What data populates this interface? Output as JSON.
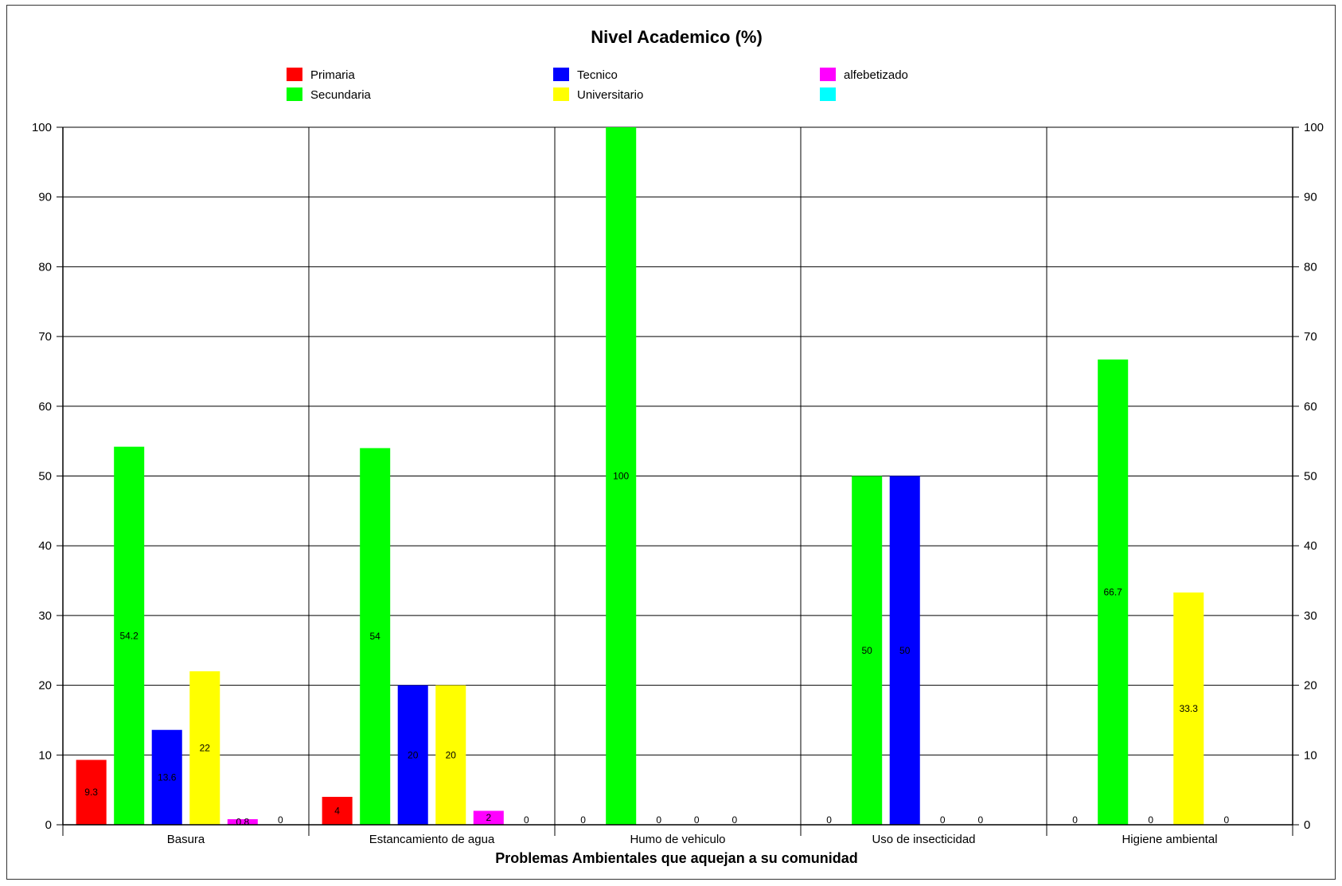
{
  "chart_data": {
    "type": "bar",
    "title": "Nivel Academico (%)",
    "xlabel": "Problemas Ambientales que aquejan a su comunidad",
    "ylabel": "",
    "ylim": [
      0,
      100
    ],
    "yticks": [
      0,
      10,
      20,
      30,
      40,
      50,
      60,
      70,
      80,
      90,
      100
    ],
    "grid": true,
    "legend_position": "top",
    "categories": [
      "Basura",
      "Estancamiento de agua",
      "Humo de vehiculo",
      "Uso de insecticidad",
      "Higiene ambiental"
    ],
    "series": [
      {
        "name": "Primaria",
        "color": "#ff0000",
        "values": [
          9.3,
          4,
          0,
          0,
          0
        ]
      },
      {
        "name": "Secundaria",
        "color": "#00ff00",
        "values": [
          54.2,
          54,
          100,
          50,
          66.7
        ]
      },
      {
        "name": "Tecnico",
        "color": "#0000ff",
        "values": [
          13.6,
          20,
          0,
          50,
          0
        ]
      },
      {
        "name": "Universitario",
        "color": "#ffff00",
        "values": [
          22,
          20,
          0,
          0,
          33.3
        ]
      },
      {
        "name": "alfebetizado",
        "color": "#ff00ff",
        "values": [
          0.8,
          2,
          0,
          0,
          0
        ]
      },
      {
        "name": "",
        "color": "#00ffff",
        "values": [
          0,
          0,
          0,
          0,
          0
        ]
      }
    ]
  }
}
